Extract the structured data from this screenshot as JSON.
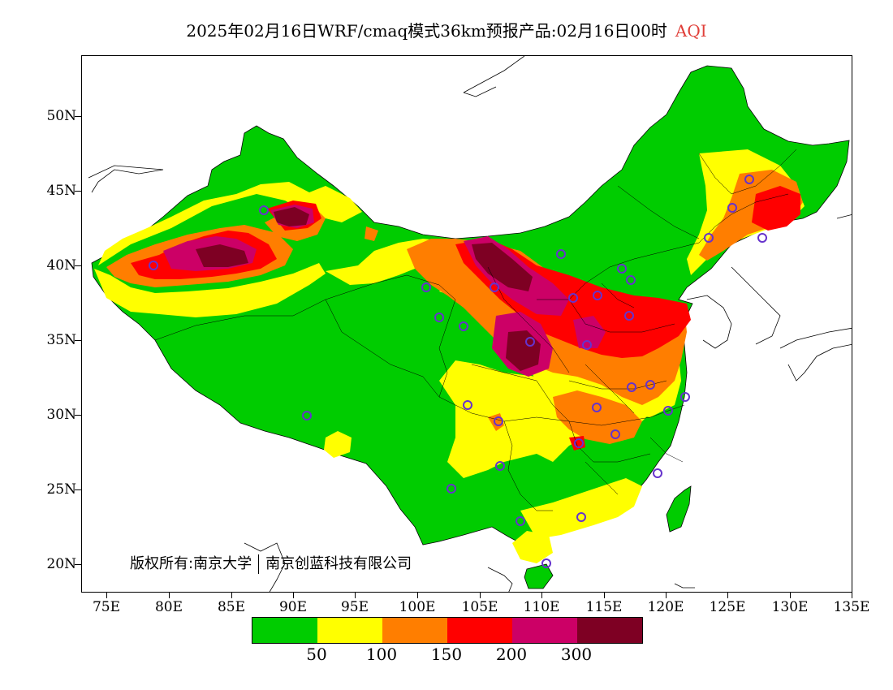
{
  "title": {
    "main": "2025年02月16日WRF/cmaq模式36km预报产品:02月16日00时",
    "variable": "AQI"
  },
  "axes": {
    "lat_labels": [
      "50N",
      "45N",
      "40N",
      "35N",
      "30N",
      "25N",
      "20N"
    ],
    "lon_labels": [
      "75E",
      "80E",
      "85E",
      "90E",
      "95E",
      "100E",
      "105E",
      "110E",
      "115E",
      "120E",
      "125E",
      "130E",
      "135E"
    ]
  },
  "copyright": {
    "left": "版权所有:南京大学",
    "right": "南京创蓝科技有限公司"
  },
  "legend": {
    "colors": [
      "#00cc00",
      "#ffff00",
      "#ff7e00",
      "#ff0000",
      "#cc0066",
      "#7e0023"
    ],
    "labels": [
      "50",
      "100",
      "150",
      "200",
      "300"
    ]
  },
  "icons": {
    "station_marker": "circle-marker-icon"
  }
}
